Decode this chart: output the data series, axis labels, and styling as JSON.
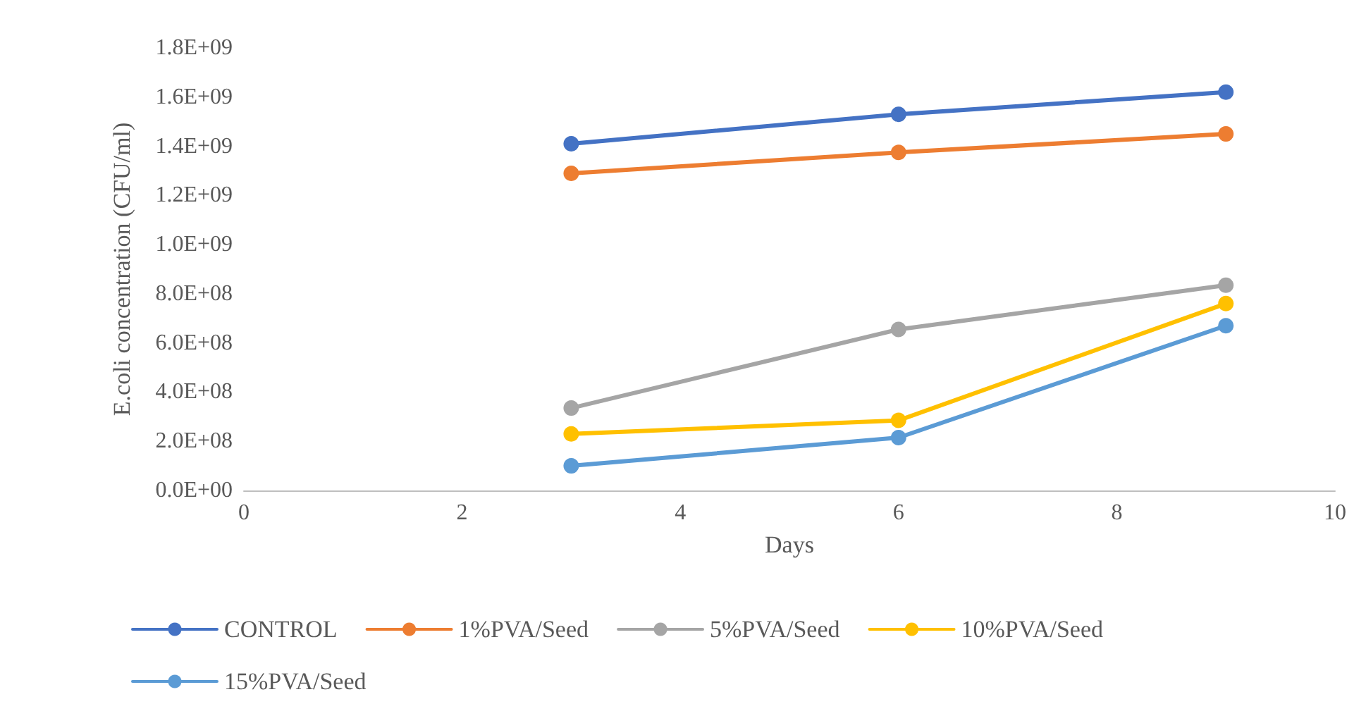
{
  "chart_data": {
    "type": "line",
    "xlabel": "Days",
    "ylabel": "E.coli concentration (CFU/ml)",
    "x": [
      3,
      6,
      9
    ],
    "series": [
      {
        "name": "CONTROL",
        "color": "#4472c4",
        "values": [
          1410000000,
          1530000000,
          1620000000
        ]
      },
      {
        "name": "1%PVA/Seed",
        "color": "#ed7d31",
        "values": [
          1290000000,
          1375000000,
          1450000000
        ]
      },
      {
        "name": "5%PVA/Seed",
        "color": "#a5a5a5",
        "values": [
          335000000,
          655000000,
          835000000
        ]
      },
      {
        "name": "10%PVA/Seed",
        "color": "#ffc000",
        "values": [
          230000000,
          285000000,
          760000000
        ]
      },
      {
        "name": "15%PVA/Seed",
        "color": "#5b9bd5",
        "values": [
          100000000,
          215000000,
          670000000
        ]
      }
    ],
    "xlim": [
      0,
      10
    ],
    "xticks": [
      0,
      2,
      4,
      6,
      8,
      10
    ],
    "ylim": [
      0,
      1800000000
    ],
    "yticks": [
      {
        "value": 0,
        "label": "0.0E+00"
      },
      {
        "value": 200000000,
        "label": "2.0E+08"
      },
      {
        "value": 400000000,
        "label": "4.0E+08"
      },
      {
        "value": 600000000,
        "label": "6.0E+08"
      },
      {
        "value": 800000000,
        "label": "8.0E+08"
      },
      {
        "value": 1000000000,
        "label": "1.0E+09"
      },
      {
        "value": 1200000000,
        "label": "1.2E+09"
      },
      {
        "value": 1400000000,
        "label": "1.4E+09"
      },
      {
        "value": 1600000000,
        "label": "1.6E+09"
      },
      {
        "value": 1800000000,
        "label": "1.8E+09"
      }
    ],
    "grid": false,
    "legend": "bottom",
    "marker": "circle",
    "line_style": "solid"
  }
}
